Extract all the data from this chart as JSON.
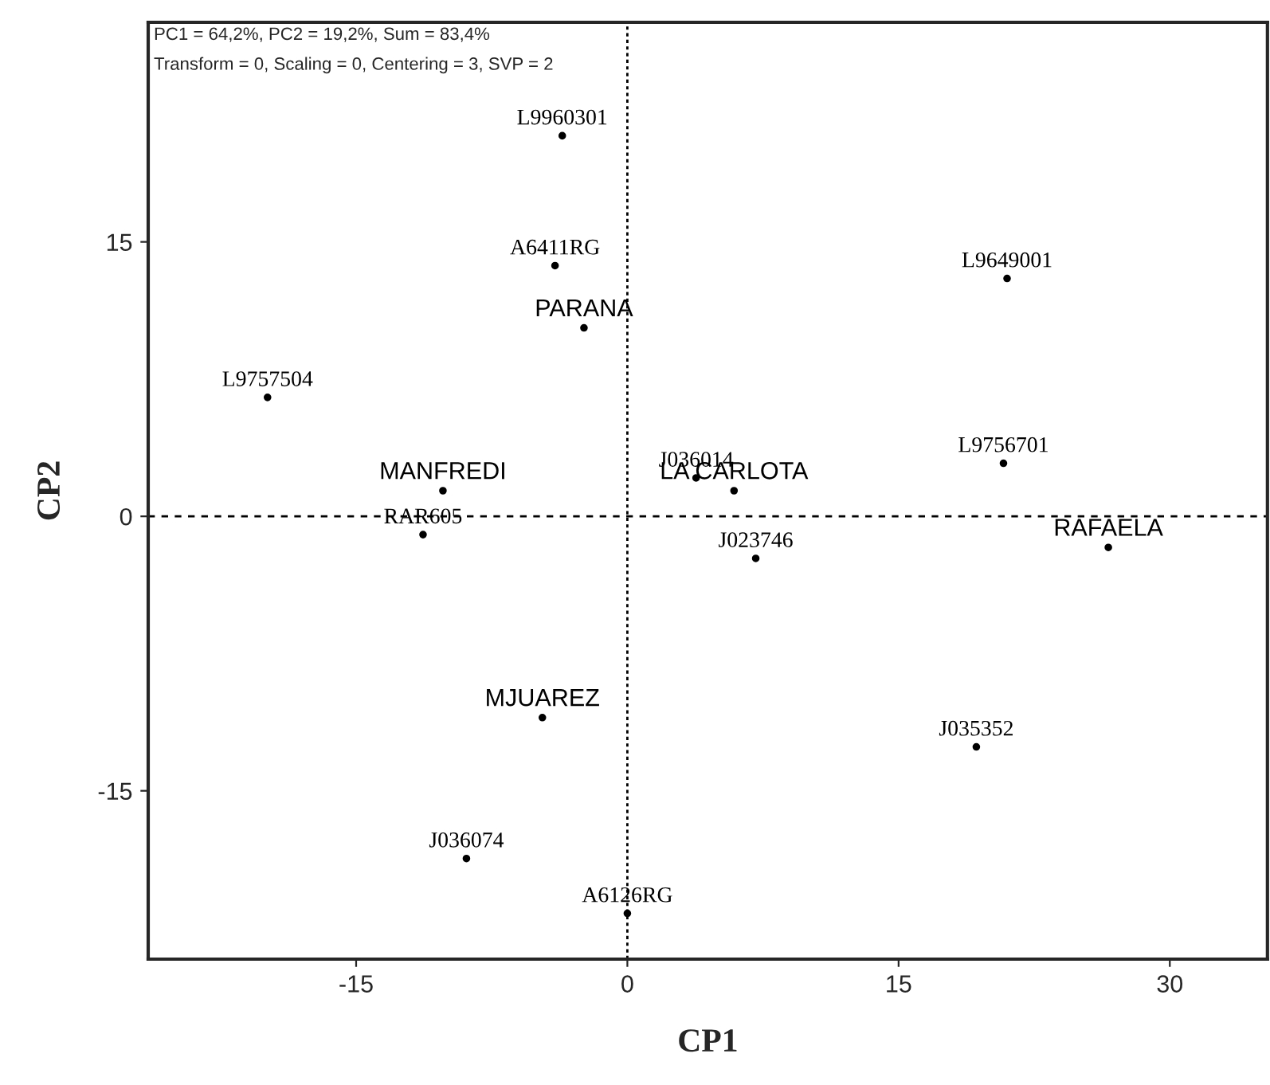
{
  "chart_data": {
    "type": "scatter",
    "xlabel": "CP1",
    "ylabel": "CP2",
    "annotations": [
      "PC1 = 64,2%, PC2 = 19,2%, Sum = 83,4%",
      "Transform = 0, Scaling = 0, Centering = 3, SVP = 2"
    ],
    "series": [
      {
        "color": "#000000",
        "marker": "circle",
        "x": [
          -3.6,
          -4.0,
          21.0,
          -19.9,
          -11.3,
          3.8,
          20.8,
          7.1,
          19.3,
          -8.9,
          0.0
        ],
        "values": [
          20.8,
          13.7,
          13.0,
          6.5,
          -1.0,
          2.1,
          2.9,
          -2.3,
          -12.6,
          -18.7,
          -21.7
        ],
        "value_labels": [
          "L9960301",
          "A6411RG",
          "L9649001",
          "L9757504",
          "RAR605",
          "J036014",
          "L9756701",
          "J023746",
          "J035352",
          "J036074",
          "A6126RG"
        ]
      },
      {
        "color": "#000000",
        "marker": "circle",
        "x": [
          -2.4,
          -10.2,
          5.9,
          26.6,
          -4.7
        ],
        "values": [
          10.3,
          1.4,
          1.4,
          -1.7,
          -11.0
        ],
        "value_labels": [
          "PARANA",
          "MANFREDI",
          "LA CARLOTA",
          "RAFAELA",
          "MJUAREZ"
        ]
      }
    ],
    "xlim": [
      -26.5,
      35.4
    ],
    "ylim": [
      -24.2,
      27
    ],
    "xticks": [
      -15,
      0,
      15,
      30
    ],
    "yticks": [
      -15,
      0,
      15
    ],
    "ref_lines": [
      {
        "axis": "x",
        "value": 0,
        "line_style": "dotted"
      },
      {
        "axis": "y",
        "value": 0,
        "line_style": "dashed"
      }
    ],
    "grid": false,
    "legend": false
  }
}
